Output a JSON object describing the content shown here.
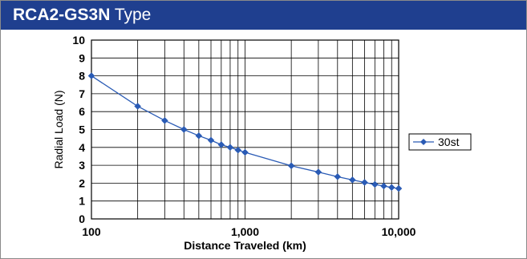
{
  "header": {
    "model": "RCA2-GS3N",
    "suffix": " Type",
    "background_color": "#1f3f8f"
  },
  "chart_data": {
    "type": "line",
    "title": "RCA2-GS3N Type",
    "xlabel": "Distance Traveled (km)",
    "ylabel": "Radial Load (N)",
    "x_scale": "log",
    "xlim": [
      100,
      10000
    ],
    "ylim": [
      0,
      10
    ],
    "x_tick_labels": [
      {
        "value": 100,
        "label": "100"
      },
      {
        "value": 1000,
        "label": "1,000"
      },
      {
        "value": 10000,
        "label": "10,000"
      }
    ],
    "y_ticks": [
      0,
      1,
      2,
      3,
      4,
      5,
      6,
      7,
      8,
      9,
      10
    ],
    "grid": true,
    "legend_position": "right",
    "series": [
      {
        "name": "30st",
        "color": "#2a5bb5",
        "marker": "diamond",
        "x": [
          100,
          200,
          300,
          400,
          500,
          600,
          700,
          800,
          900,
          1000,
          2000,
          3000,
          4000,
          5000,
          6000,
          7000,
          8000,
          9000,
          10000
        ],
        "y": [
          8.0,
          6.3,
          5.5,
          5.0,
          4.65,
          4.4,
          4.15,
          4.0,
          3.85,
          3.72,
          2.97,
          2.62,
          2.36,
          2.18,
          2.04,
          1.93,
          1.84,
          1.76,
          1.7
        ]
      }
    ]
  }
}
